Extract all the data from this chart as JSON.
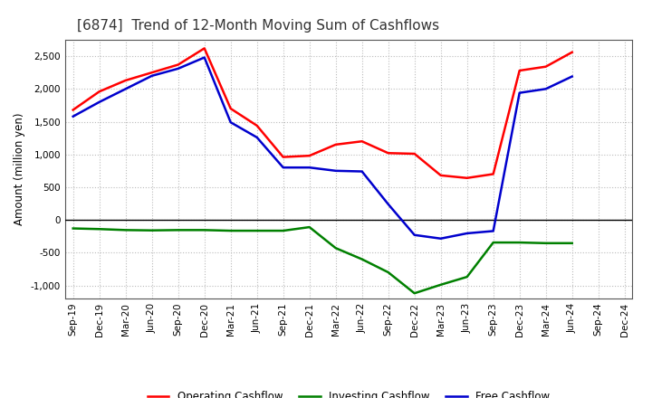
{
  "title": "[6874]  Trend of 12-Month Moving Sum of Cashflows",
  "ylabel": "Amount (million yen)",
  "x_labels": [
    "Sep-19",
    "Dec-19",
    "Mar-20",
    "Jun-20",
    "Sep-20",
    "Dec-20",
    "Mar-21",
    "Jun-21",
    "Sep-21",
    "Dec-21",
    "Mar-22",
    "Jun-22",
    "Sep-22",
    "Dec-22",
    "Mar-23",
    "Jun-23",
    "Sep-23",
    "Dec-23",
    "Mar-24",
    "Jun-24",
    "Sep-24",
    "Dec-24"
  ],
  "operating_cashflow": [
    1680,
    1960,
    2130,
    2250,
    2370,
    2620,
    1700,
    1440,
    960,
    980,
    1150,
    1200,
    1020,
    1010,
    680,
    640,
    700,
    2280,
    2340,
    2560,
    null,
    null
  ],
  "investing_cashflow": [
    -130,
    -140,
    -155,
    -160,
    -155,
    -155,
    -165,
    -165,
    -165,
    -110,
    -430,
    -600,
    -800,
    -1120,
    -990,
    -870,
    -345,
    -345,
    -355,
    -355,
    null,
    null
  ],
  "free_cashflow": [
    1580,
    1800,
    2000,
    2200,
    2310,
    2480,
    1490,
    1260,
    800,
    800,
    750,
    740,
    240,
    -230,
    -285,
    -205,
    -170,
    1940,
    2000,
    2190,
    null,
    null
  ],
  "operating_color": "#ff0000",
  "investing_color": "#008000",
  "free_color": "#0000cd",
  "ylim": [
    -1200,
    2750
  ],
  "yticks": [
    -1000,
    -500,
    0,
    500,
    1000,
    1500,
    2000,
    2500
  ],
  "background_color": "#ffffff",
  "plot_bg_color": "#ffffff",
  "grid_color": "#bbbbbb",
  "linewidth": 1.8,
  "title_fontsize": 11,
  "title_color": "#333333",
  "title_fontweight": "normal",
  "ylabel_fontsize": 8.5,
  "tick_fontsize": 7.5,
  "legend_fontsize": 8.5
}
